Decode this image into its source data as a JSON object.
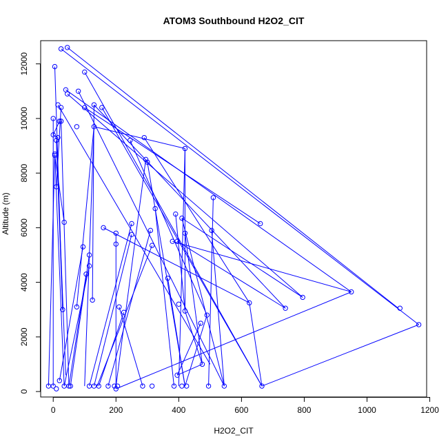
{
  "chart_data": {
    "type": "scatter",
    "title": "ATOM3 Southbound H2O2_CIT",
    "xlabel": "H2O2_CIT",
    "ylabel": "Altitude (m)",
    "xlim": [
      -40,
      1190
    ],
    "ylim": [
      -200,
      12850
    ],
    "xticks": [
      0,
      200,
      400,
      600,
      800,
      1000,
      1200
    ],
    "yticks": [
      0,
      2000,
      4000,
      6000,
      8000,
      10000,
      12000
    ],
    "xticklabels": [
      "0",
      "200",
      "400",
      "600",
      "800",
      "1000",
      "1200"
    ],
    "yticklabels": [
      "0",
      "2000",
      "4000",
      "6000",
      "8000",
      "10000",
      "12000"
    ],
    "grid": false,
    "legend": "none",
    "series": [
      {
        "style": "lines-and-open-circles",
        "color": "#0000ff",
        "points": [
          [
            -15,
            200
          ],
          [
            5,
            8700
          ],
          [
            15,
            9300
          ],
          [
            5,
            11900
          ],
          [
            15,
            10500
          ],
          [
            25,
            10400
          ],
          [
            20,
            9900
          ],
          [
            0,
            10000
          ],
          [
            10,
            9200
          ],
          [
            0,
            9400
          ],
          [
            5,
            8650
          ],
          [
            10,
            7500
          ],
          [
            35,
            6200
          ],
          [
            30,
            3000
          ],
          [
            75,
            3100
          ],
          [
            95,
            5300
          ],
          [
            105,
            4300
          ],
          [
            115,
            5000
          ],
          [
            115,
            4600
          ],
          [
            125,
            3350
          ],
          [
            130,
            9700
          ],
          [
            130,
            10500
          ],
          [
            155,
            10400
          ],
          [
            160,
            6000
          ],
          [
            200,
            5800
          ],
          [
            200,
            5400
          ],
          [
            210,
            3100
          ],
          [
            225,
            2900
          ],
          [
            195,
            200
          ],
          [
            245,
            9200
          ],
          [
            250,
            6150
          ],
          [
            250,
            5750
          ],
          [
            290,
            9300
          ],
          [
            295,
            8500
          ],
          [
            300,
            8400
          ],
          [
            310,
            5900
          ],
          [
            315,
            5350
          ],
          [
            325,
            6700
          ],
          [
            365,
            4150
          ],
          [
            380,
            5500
          ],
          [
            390,
            6500
          ],
          [
            395,
            5500
          ],
          [
            400,
            3200
          ],
          [
            410,
            6350
          ],
          [
            420,
            2950
          ],
          [
            420,
            5800
          ],
          [
            420,
            8900
          ],
          [
            470,
            2500
          ],
          [
            490,
            2800
          ],
          [
            505,
            5900
          ],
          [
            510,
            7100
          ],
          [
            625,
            3250
          ],
          [
            660,
            6150
          ],
          [
            740,
            3050
          ],
          [
            795,
            3450
          ],
          [
            950,
            3650
          ],
          [
            1105,
            3050
          ],
          [
            1165,
            2450
          ],
          [
            665,
            200
          ],
          [
            475,
            1000
          ],
          [
            395,
            600
          ],
          [
            385,
            200
          ],
          [
            410,
            200
          ],
          [
            545,
            200
          ],
          [
            495,
            200
          ],
          [
            425,
            200
          ],
          [
            315,
            200
          ],
          [
            285,
            200
          ],
          [
            205,
            200
          ],
          [
            200,
            100
          ],
          [
            175,
            200
          ],
          [
            145,
            200
          ],
          [
            130,
            200
          ],
          [
            115,
            200
          ],
          [
            55,
            200
          ],
          [
            50,
            200
          ],
          [
            35,
            200
          ],
          [
            20,
            400
          ],
          [
            0,
            200
          ],
          [
            10,
            100
          ],
          [
            25,
            12550
          ],
          [
            45,
            12600
          ],
          [
            100,
            11700
          ],
          [
            40,
            11050
          ],
          [
            45,
            10900
          ],
          [
            80,
            11000
          ],
          [
            75,
            9700
          ],
          [
            100,
            10400
          ],
          [
            25,
            9900
          ]
        ],
        "segments": [
          [
            45,
            12600,
            1100,
            3050
          ],
          [
            25,
            12550,
            1165,
            2450
          ],
          [
            100,
            11700,
            665,
            200
          ],
          [
            80,
            11000,
            545,
            200
          ],
          [
            40,
            11050,
            950,
            3650
          ],
          [
            45,
            10900,
            795,
            3450
          ],
          [
            15,
            10500,
            500,
            1000
          ],
          [
            0,
            10000,
            0,
            200
          ],
          [
            5,
            8700,
            35,
            200
          ],
          [
            10,
            9200,
            40,
            600
          ],
          [
            5,
            11900,
            30,
            3000
          ],
          [
            25,
            9900,
            50,
            200
          ],
          [
            100,
            10400,
            660,
            6150
          ],
          [
            130,
            10500,
            740,
            3050
          ],
          [
            155,
            10400,
            665,
            200
          ],
          [
            130,
            9700,
            100,
            200
          ],
          [
            130,
            9700,
            420,
            8900
          ],
          [
            290,
            9300,
            625,
            3250
          ],
          [
            245,
            9200,
            490,
            2800
          ],
          [
            300,
            8400,
            420,
            200
          ],
          [
            295,
            8500,
            200,
            200
          ],
          [
            420,
            8900,
            400,
            200
          ],
          [
            510,
            7100,
            495,
            200
          ],
          [
            505,
            5900,
            545,
            200
          ],
          [
            325,
            6700,
            385,
            200
          ],
          [
            410,
            6350,
            545,
            200
          ],
          [
            420,
            5800,
            475,
            1000
          ],
          [
            395,
            5500,
            740,
            3050
          ],
          [
            380,
            5500,
            950,
            3650
          ],
          [
            390,
            6500,
            420,
            2950
          ],
          [
            365,
            4150,
            420,
            200
          ],
          [
            210,
            3100,
            285,
            200
          ],
          [
            225,
            2900,
            145,
            200
          ],
          [
            200,
            5800,
            200,
            200
          ],
          [
            160,
            6000,
            625,
            3250
          ],
          [
            250,
            6150,
            115,
            200
          ],
          [
            250,
            5750,
            130,
            200
          ],
          [
            310,
            5900,
            175,
            200
          ],
          [
            315,
            5350,
            140,
            200
          ],
          [
            115,
            5000,
            55,
            200
          ],
          [
            115,
            4600,
            35,
            200
          ],
          [
            105,
            4300,
            50,
            200
          ],
          [
            125,
            3350,
            130,
            10500
          ],
          [
            95,
            5300,
            20,
            400
          ],
          [
            75,
            3100,
            130,
            9700
          ],
          [
            30,
            3000,
            10,
            9200
          ],
          [
            35,
            6200,
            5,
            8650
          ],
          [
            10,
            7500,
            25,
            10400
          ],
          [
            -15,
            200,
            5,
            8700
          ],
          [
            0,
            9400,
            20,
            9900
          ],
          [
            0,
            9400,
            15,
            9300
          ],
          [
            470,
            2500,
            395,
            600
          ],
          [
            490,
            2800,
            420,
            200
          ],
          [
            420,
            2950,
            475,
            1000
          ],
          [
            1165,
            2450,
            665,
            200
          ],
          [
            950,
            3650,
            200,
            100
          ],
          [
            665,
            200,
            625,
            3250
          ],
          [
            410,
            6350,
            795,
            3450
          ],
          [
            420,
            8900,
            420,
            2950
          ],
          [
            395,
            600,
            475,
            1000
          ]
        ]
      }
    ]
  }
}
